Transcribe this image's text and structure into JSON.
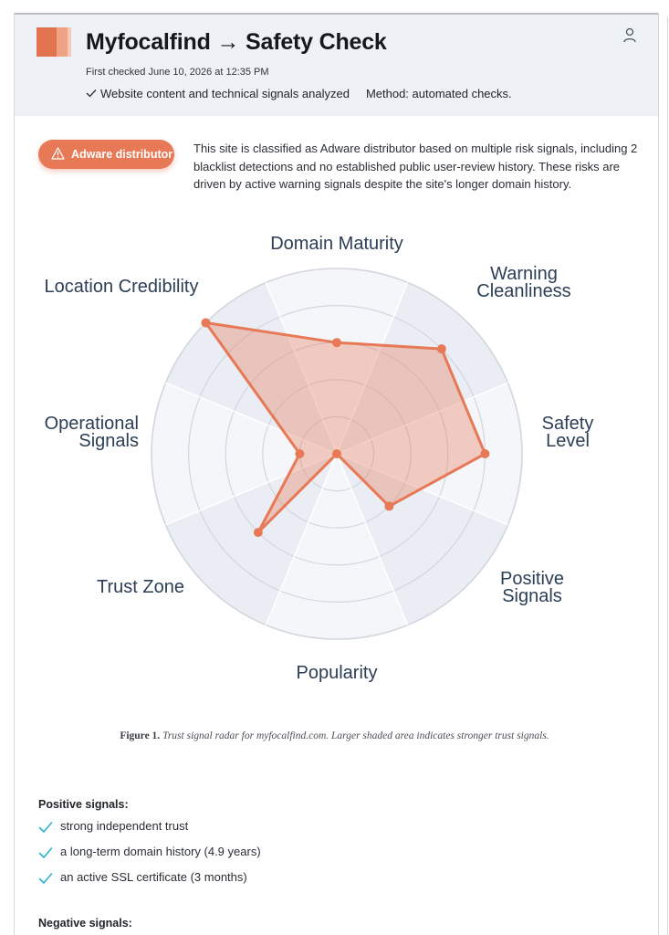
{
  "header": {
    "site": "Myfocalfind",
    "arrow": "→",
    "page": "Safety Check",
    "first_checked": "First checked June 10, 2026 at 12:35 PM",
    "analyzed": "Website content and technical signals analyzed",
    "method": "Method: automated checks."
  },
  "verdict": {
    "badge": "Adware distributor",
    "summary": "This site is classified as Adware distributor based on multiple risk signals, including 2 blacklist detections and no established public user-review history. These risks are driven by active warning signals despite the site's longer domain history."
  },
  "chart_data": {
    "type": "radar",
    "axes": [
      "Domain Maturity",
      "Warning Cleanliness",
      "Safety Level",
      "Positive Signals",
      "Popularity",
      "Trust Zone",
      "Operational Signals",
      "Location Credibility"
    ],
    "axis_labels": [
      {
        "lines": [
          "Domain Maturity"
        ]
      },
      {
        "lines": [
          "Warning",
          "Cleanliness"
        ]
      },
      {
        "lines": [
          "Safety",
          "Level"
        ]
      },
      {
        "lines": [
          "Positive",
          "Signals"
        ]
      },
      {
        "lines": [
          "Popularity"
        ]
      },
      {
        "lines": [
          "Trust Zone"
        ]
      },
      {
        "lines": [
          "Operational",
          "Signals"
        ]
      },
      {
        "lines": [
          "Location Credibility"
        ]
      }
    ],
    "values": [
      0.6,
      0.8,
      0.8,
      0.4,
      0.0,
      0.6,
      0.2,
      1.0
    ],
    "range": [
      0,
      1
    ],
    "rings": 5,
    "colors": {
      "fill": "#e77956",
      "line": "#e77956",
      "grid": "#d2d6de",
      "sector_a": "#eaedf3",
      "sector_b": "#f4f6f9"
    }
  },
  "caption": {
    "figure": "Figure 1.",
    "text": "Trust signal radar for myfocalfind.com. Larger shaded area indicates stronger trust signals."
  },
  "positive": {
    "title": "Positive signals:",
    "items": [
      "strong independent trust",
      "a long-term domain history (4.9 years)",
      "an active SSL certificate (3 months)"
    ]
  },
  "negative": {
    "title": "Negative signals:"
  }
}
